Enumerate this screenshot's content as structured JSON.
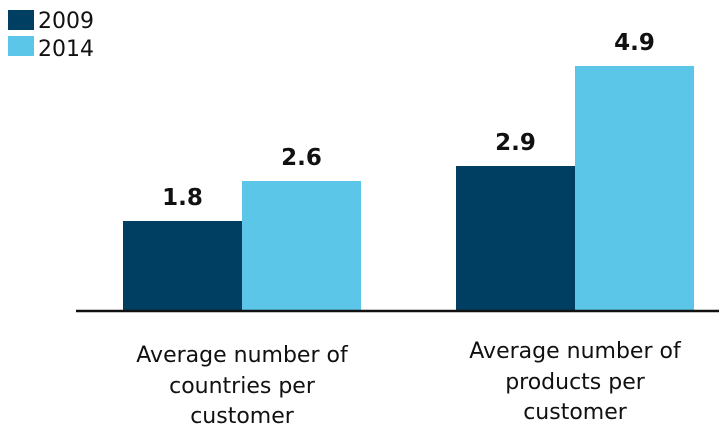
{
  "chart_data": {
    "type": "bar",
    "categories": [
      [
        "Average number of",
        "countries per",
        "customer"
      ],
      [
        "Average number of",
        "products per",
        "customer"
      ]
    ],
    "series": [
      {
        "name": "2009",
        "values": [
          1.8,
          2.9
        ],
        "color": "#003f62"
      },
      {
        "name": "2014",
        "values": [
          2.6,
          4.9
        ],
        "color": "#5bc6e8"
      }
    ],
    "ylim": [
      0,
      5
    ],
    "grid": false,
    "legend": "top-left"
  }
}
